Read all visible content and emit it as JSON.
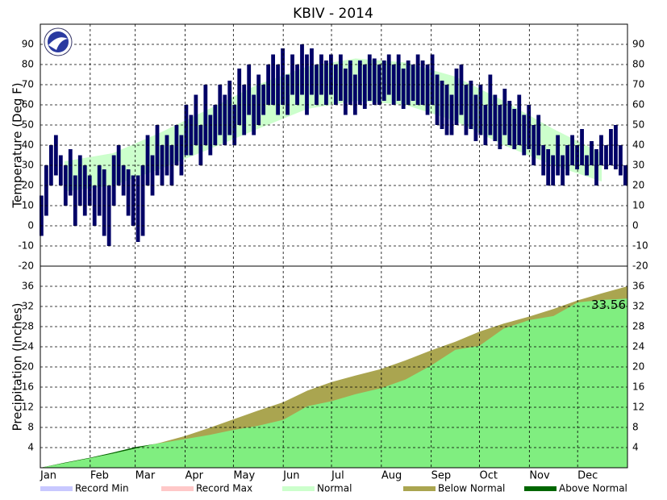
{
  "chart_data": [
    {
      "type": "range-bar",
      "title": "KBIV - 2014",
      "ylabel": "Temperature (Deg F)",
      "color": "#000066",
      "xlim": [
        0,
        365
      ],
      "ylim": [
        -20,
        100
      ],
      "yticks": [
        -20,
        -10,
        0,
        10,
        20,
        30,
        40,
        50,
        60,
        70,
        80,
        90
      ],
      "x": [
        1,
        4,
        7,
        10,
        13,
        16,
        19,
        22,
        25,
        28,
        31,
        34,
        37,
        40,
        43,
        46,
        49,
        52,
        55,
        58,
        61,
        64,
        67,
        70,
        73,
        76,
        79,
        82,
        85,
        88,
        91,
        94,
        97,
        100,
        103,
        106,
        109,
        112,
        115,
        118,
        121,
        124,
        127,
        130,
        133,
        136,
        139,
        142,
        145,
        148,
        151,
        154,
        157,
        160,
        163,
        166,
        169,
        172,
        175,
        178,
        181,
        184,
        187,
        190,
        193,
        196,
        199,
        202,
        205,
        208,
        211,
        214,
        217,
        220,
        223,
        226,
        229,
        232,
        235,
        238,
        241,
        244,
        247,
        250,
        253,
        256,
        259,
        262,
        265,
        268,
        271,
        274,
        277,
        280,
        283,
        286,
        289,
        292,
        295,
        298,
        301,
        304,
        307,
        310,
        313,
        316,
        319,
        322,
        325,
        328,
        331,
        334,
        337,
        340,
        343,
        346,
        349,
        352,
        355,
        358,
        361,
        364
      ],
      "high": [
        15,
        30,
        40,
        45,
        35,
        30,
        38,
        25,
        35,
        30,
        25,
        20,
        30,
        28,
        20,
        35,
        40,
        30,
        28,
        25,
        25,
        30,
        45,
        35,
        50,
        40,
        45,
        40,
        50,
        45,
        60,
        55,
        65,
        50,
        70,
        55,
        60,
        70,
        65,
        72,
        60,
        78,
        70,
        80,
        65,
        75,
        70,
        80,
        85,
        80,
        88,
        75,
        85,
        80,
        90,
        85,
        88,
        80,
        85,
        82,
        85,
        80,
        85,
        78,
        82,
        75,
        82,
        80,
        85,
        83,
        80,
        82,
        85,
        80,
        85,
        78,
        82,
        80,
        85,
        82,
        80,
        85,
        75,
        72,
        70,
        65,
        78,
        80,
        70,
        72,
        65,
        70,
        60,
        75,
        65,
        60,
        68,
        62,
        58,
        65,
        55,
        60,
        50,
        55,
        40,
        38,
        35,
        45,
        35,
        40,
        45,
        40,
        48,
        35,
        42,
        38,
        45,
        40,
        48,
        50,
        40,
        30
      ],
      "low": [
        -5,
        5,
        20,
        25,
        20,
        10,
        15,
        0,
        10,
        5,
        10,
        0,
        5,
        -5,
        -10,
        10,
        20,
        15,
        5,
        0,
        -8,
        -5,
        20,
        15,
        25,
        20,
        25,
        20,
        30,
        25,
        35,
        35,
        40,
        30,
        40,
        35,
        40,
        45,
        40,
        45,
        40,
        50,
        45,
        55,
        45,
        50,
        55,
        60,
        60,
        55,
        60,
        55,
        65,
        60,
        65,
        55,
        65,
        60,
        65,
        60,
        65,
        60,
        62,
        55,
        60,
        55,
        60,
        58,
        62,
        60,
        60,
        62,
        65,
        60,
        62,
        58,
        60,
        62,
        60,
        60,
        55,
        60,
        50,
        48,
        45,
        45,
        50,
        55,
        45,
        48,
        42,
        45,
        40,
        45,
        42,
        38,
        45,
        40,
        38,
        40,
        35,
        38,
        30,
        35,
        25,
        20,
        20,
        25,
        20,
        25,
        30,
        28,
        30,
        25,
        30,
        20,
        30,
        28,
        30,
        28,
        25,
        20
      ],
      "normal": {
        "color": "#ccffcc",
        "x": [
          15,
          45,
          74,
          105,
          135,
          166,
          196,
          227,
          258,
          288,
          319,
          349
        ],
        "low": [
          17,
          20,
          28,
          38,
          48,
          58,
          62,
          60,
          52,
          40,
          30,
          22
        ],
        "high": [
          32,
          36,
          46,
          58,
          70,
          79,
          83,
          81,
          74,
          62,
          48,
          36
        ]
      }
    },
    {
      "type": "area",
      "ylabel": "Precipitation (Inches)",
      "xlim": [
        0,
        365
      ],
      "ylim": [
        0,
        40
      ],
      "yticks": [
        4,
        8,
        12,
        16,
        20,
        24,
        28,
        32,
        36
      ],
      "xticks": [
        {
          "value": 0,
          "label": "Jan"
        },
        {
          "value": 31,
          "label": "Feb"
        },
        {
          "value": 59,
          "label": "Mar"
        },
        {
          "value": 90,
          "label": "Apr"
        },
        {
          "value": 120,
          "label": "May"
        },
        {
          "value": 151,
          "label": "Jun"
        },
        {
          "value": 181,
          "label": "Jul"
        },
        {
          "value": 212,
          "label": "Aug"
        },
        {
          "value": 243,
          "label": "Sep"
        },
        {
          "value": 273,
          "label": "Oct"
        },
        {
          "value": 304,
          "label": "Nov"
        },
        {
          "value": 334,
          "label": "Dec"
        }
      ],
      "x": [
        0,
        15,
        31,
        45,
        59,
        75,
        90,
        105,
        120,
        135,
        151,
        166,
        181,
        196,
        212,
        227,
        243,
        258,
        273,
        288,
        304,
        319,
        334,
        349,
        365
      ],
      "series": [
        {
          "color": "#aaa550",
          "values": [
            0,
            0.9,
            1.9,
            2.8,
            3.8,
            5.0,
            6.3,
            7.9,
            9.6,
            11.3,
            13.0,
            15.3,
            17.0,
            18.3,
            19.6,
            21.3,
            23.3,
            25.0,
            27.0,
            28.6,
            30.0,
            31.5,
            33.2,
            34.6,
            36.0
          ]
        },
        {
          "color": "#80ee80",
          "above_color": "#006600",
          "values": [
            0,
            1.0,
            2.0,
            3.0,
            4.1,
            4.9,
            5.7,
            6.5,
            7.5,
            8.3,
            9.5,
            12.2,
            13.2,
            14.6,
            15.8,
            17.5,
            20.3,
            23.4,
            24.2,
            27.6,
            29.3,
            30.1,
            32.8,
            33.3,
            33.56
          ]
        }
      ]
    }
  ],
  "legend": [
    {
      "name": "Record Min",
      "color": "#c8c8ff"
    },
    {
      "name": "Record Max",
      "color": "#ffc8c8"
    },
    {
      "name": "Normal",
      "color": "#ccffcc"
    },
    {
      "name": "Below Normal",
      "color": "#aaa550"
    },
    {
      "name": "Above Normal",
      "color": "#006600"
    }
  ]
}
